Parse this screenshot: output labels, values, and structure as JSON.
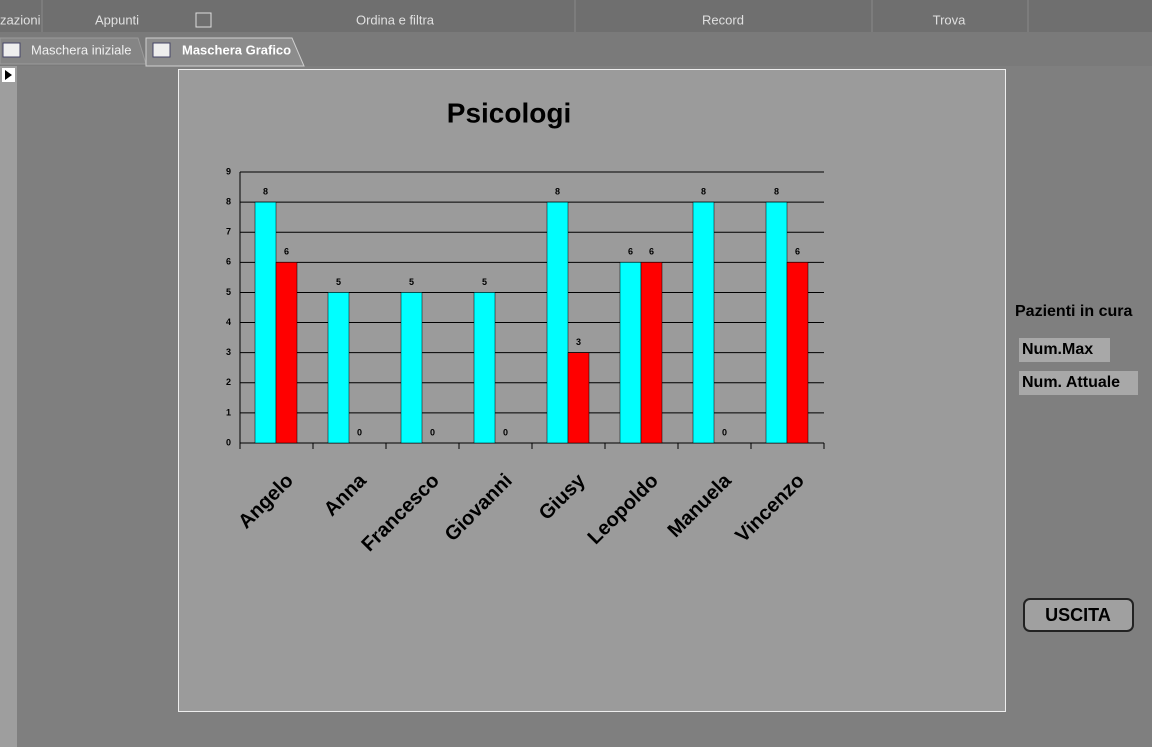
{
  "ribbon": {
    "groups": [
      "zazioni",
      "Appunti",
      "Ordina e filtra",
      "Record",
      "Trova"
    ]
  },
  "tabs": [
    "Maschera iniziale",
    "Maschera Grafico"
  ],
  "chart_data": {
    "type": "bar",
    "title": "Psicologi",
    "categories": [
      "Angelo",
      "Anna",
      "Francesco",
      "Giovanni",
      "Giusy",
      "Leopoldo",
      "Manuela",
      "Vincenzo"
    ],
    "series": [
      {
        "name": "Num.Max",
        "color": "#00ffff",
        "values": [
          8,
          5,
          5,
          5,
          8,
          6,
          8,
          8
        ]
      },
      {
        "name": "Num. Attuale",
        "color": "#ff0000",
        "values": [
          6,
          0,
          0,
          0,
          3,
          6,
          0,
          6
        ]
      }
    ],
    "ylim": [
      0,
      9
    ],
    "yticks": [
      0,
      1,
      2,
      3,
      4,
      5,
      6,
      7,
      8,
      9
    ],
    "grid": true,
    "legend_title": "Pazienti in cura"
  },
  "button": "USCITA"
}
